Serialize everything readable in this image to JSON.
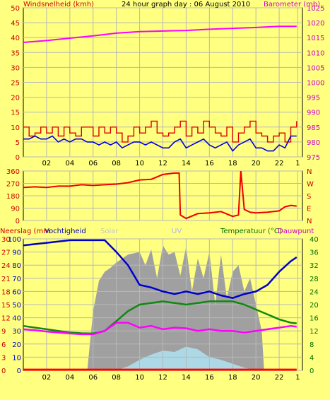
{
  "colors": {
    "background": "#ffff80",
    "plot_bg": "#ffff80",
    "grid": "#b8b8b8",
    "axis_red": "#cc0000",
    "axis_magenta": "#cc00cc",
    "axis_green": "#007000",
    "wind_gust": "#dd0000",
    "wind_avg": "#0000dd",
    "barometer": "#ff00ff",
    "wind_dir": "#ee0000",
    "rain": "#ff0000",
    "humidity": "#0000cc",
    "solar": "#a0a0a0",
    "uv": "#add8e6",
    "temperature": "#118811",
    "dewpoint": "#ff00ff",
    "solar_label": "#c8c8c8",
    "uv_label": "#b0b0ff"
  },
  "chart_data": [
    {
      "id": "wind_baro",
      "type": "line",
      "title": "24 hour graph day : 06 August 2010",
      "left_axis_label": "Windsnelheid (kmh)",
      "right_axis_label": "Barometer (mb)",
      "x_range": [
        0,
        24
      ],
      "x_tick_labels": [
        "02",
        "04",
        "06",
        "08",
        "10",
        "12",
        "14",
        "16",
        "18",
        "20",
        "22",
        "1"
      ],
      "left_ylim": [
        0,
        50
      ],
      "left_ticks": [
        "0",
        "5",
        "10",
        "15",
        "20",
        "25",
        "30",
        "35",
        "40",
        "45",
        "50"
      ],
      "right_ylim": [
        975,
        1025
      ],
      "right_ticks": [
        "975",
        "980",
        "985",
        "990",
        "995",
        "1000",
        "1005",
        "1010",
        "1015",
        "1020",
        "1025"
      ],
      "series": {
        "gust": {
          "x": [
            0,
            0.5,
            1,
            1.5,
            2,
            2.5,
            3,
            3.5,
            4,
            4.5,
            5,
            5.5,
            6,
            6.5,
            7,
            7.5,
            8,
            8.5,
            9,
            9.5,
            10,
            10.5,
            11,
            11.5,
            12,
            12.5,
            13,
            13.5,
            14,
            14.5,
            15,
            15.5,
            16,
            16.5,
            17,
            17.5,
            18,
            18.5,
            19,
            19.5,
            20,
            20.5,
            21,
            21.5,
            22,
            22.5,
            23,
            23.5
          ],
          "y": [
            10,
            7,
            8,
            10,
            8,
            10,
            7,
            10,
            8,
            7,
            10,
            10,
            7,
            10,
            8,
            10,
            8,
            5,
            7,
            10,
            8,
            10,
            12,
            8,
            7,
            8,
            10,
            12,
            7,
            10,
            8,
            12,
            10,
            8,
            7,
            10,
            5,
            8,
            10,
            12,
            8,
            7,
            5,
            7,
            8,
            5,
            10,
            12
          ]
        },
        "avg": {
          "x": [
            0,
            0.5,
            1,
            1.5,
            2,
            2.5,
            3,
            3.5,
            4,
            4.5,
            5,
            5.5,
            6,
            6.5,
            7,
            7.5,
            8,
            8.5,
            9,
            9.5,
            10,
            10.5,
            11,
            11.5,
            12,
            12.5,
            13,
            13.5,
            14,
            14.5,
            15,
            15.5,
            16,
            16.5,
            17,
            17.5,
            18,
            18.5,
            19,
            19.5,
            20,
            20.5,
            21,
            21.5,
            22,
            22.5,
            23,
            23.5
          ],
          "y": [
            6,
            6,
            7,
            6,
            6,
            7,
            5,
            6,
            5,
            6,
            6,
            5,
            5,
            4,
            5,
            4,
            5,
            3,
            4,
            5,
            5,
            4,
            5,
            4,
            3,
            3,
            5,
            6,
            3,
            4,
            5,
            6,
            4,
            3,
            4,
            5,
            2,
            4,
            5,
            6,
            3,
            3,
            2,
            2,
            4,
            3,
            7,
            7
          ]
        },
        "barometer": {
          "x": [
            0,
            2,
            4,
            6,
            8,
            10,
            12,
            14,
            16,
            18,
            20,
            22,
            23.5
          ],
          "y": [
            1013.4,
            1014,
            1014.8,
            1015.6,
            1016.5,
            1017,
            1017.2,
            1017.4,
            1017.8,
            1018.1,
            1018.4,
            1018.8,
            1018.8
          ]
        }
      }
    },
    {
      "id": "wind_dir",
      "type": "line",
      "x_range": [
        0,
        24
      ],
      "ylim": [
        0,
        360
      ],
      "left_ticks": [
        "0",
        "90",
        "180",
        "270",
        "360"
      ],
      "right_ticks": [
        "N",
        "E",
        "S",
        "W",
        "N"
      ],
      "series": {
        "direction": {
          "x": [
            0,
            1,
            2,
            3,
            4,
            5,
            6,
            7,
            8,
            9,
            10,
            11,
            12,
            12.5,
            13,
            13.4,
            13.5,
            14,
            15,
            16,
            17,
            18,
            18.5,
            18.7,
            19,
            19.5,
            20,
            21,
            22,
            22.5,
            23,
            23.5
          ],
          "y": [
            240,
            245,
            240,
            250,
            250,
            260,
            255,
            260,
            265,
            275,
            295,
            300,
            335,
            340,
            345,
            345,
            40,
            15,
            50,
            55,
            65,
            30,
            40,
            360,
            80,
            60,
            55,
            60,
            70,
            100,
            110,
            105
          ]
        }
      }
    },
    {
      "id": "rain_temp",
      "type": "line",
      "left_axis_label": "Neerslag (mm",
      "left_axis_label2": "Vochtigheid",
      "solar_label": "Solar",
      "uv_label": "UV",
      "right_axis_label": "Temperatuur (°C)",
      "right_axis_label2": "Dauwpunt",
      "x_range": [
        0,
        24
      ],
      "left_ylim": [
        0,
        100
      ],
      "left_ticks": [
        "0",
        "10",
        "20",
        "30",
        "40",
        "50",
        "60",
        "70",
        "80",
        "90",
        "100"
      ],
      "rain_ticks": [
        "0",
        "3",
        "6",
        "9",
        "12",
        "15",
        "18",
        "21",
        "24",
        "27",
        "30"
      ],
      "right_ylim": [
        0,
        40
      ],
      "right_ticks": [
        "0",
        "4",
        "8",
        "12",
        "16",
        "20",
        "24",
        "28",
        "32",
        "36",
        "40"
      ],
      "series": {
        "solar": {
          "x": [
            0,
            5.5,
            6,
            6.5,
            7,
            7.5,
            8,
            9,
            10,
            10.5,
            11,
            11.5,
            12,
            12.5,
            13,
            13.5,
            14,
            14.5,
            15,
            15.5,
            16,
            16.5,
            17,
            17.5,
            18,
            18.5,
            19,
            19.5,
            20,
            20.5,
            20.7,
            24
          ],
          "y": [
            0,
            0,
            45,
            68,
            75,
            78,
            82,
            88,
            90,
            80,
            92,
            70,
            95,
            88,
            90,
            72,
            94,
            60,
            85,
            70,
            90,
            50,
            88,
            55,
            75,
            80,
            60,
            70,
            50,
            30,
            0,
            0
          ]
        },
        "uv": {
          "x": [
            8,
            9,
            10,
            11,
            12,
            13,
            14,
            15,
            16,
            17,
            18,
            19,
            20
          ],
          "y": [
            0,
            3,
            8,
            12,
            15,
            14,
            18,
            16,
            10,
            8,
            5,
            2,
            0
          ]
        },
        "humidity": {
          "x": [
            0,
            1,
            2,
            3,
            4,
            5,
            6,
            7,
            8,
            9,
            10,
            11,
            12,
            13,
            14,
            15,
            16,
            17,
            18,
            19,
            20,
            21,
            22,
            23,
            23.5
          ],
          "y": [
            95,
            96,
            97,
            98,
            99,
            99,
            99,
            99,
            90,
            80,
            65,
            63,
            60,
            58,
            60,
            58,
            60,
            57,
            55,
            58,
            60,
            65,
            75,
            83,
            86
          ]
        },
        "temperature": {
          "x": [
            0,
            1,
            2,
            3,
            4,
            5,
            6,
            7,
            8,
            9,
            10,
            11,
            12,
            13,
            14,
            15,
            16,
            17,
            18,
            19,
            20,
            21,
            22,
            23,
            23.5
          ],
          "y": [
            13.5,
            13,
            12.5,
            12,
            11.5,
            11.3,
            11.2,
            12,
            15,
            18,
            20,
            20.5,
            21,
            20.5,
            20,
            20.5,
            21,
            21,
            21,
            20,
            18.5,
            17,
            15.5,
            14.5,
            14.3
          ]
        },
        "dewpoint": {
          "x": [
            0,
            1,
            2,
            3,
            4,
            5,
            6,
            7,
            8,
            9,
            10,
            11,
            12,
            13,
            14,
            15,
            16,
            17,
            18,
            19,
            20,
            21,
            22,
            23,
            23.5
          ],
          "y": [
            12.5,
            12.2,
            11.8,
            11.5,
            11.2,
            11,
            11,
            12,
            14.5,
            14.5,
            13,
            13.5,
            12.5,
            13,
            12.8,
            12,
            12.5,
            12,
            12,
            11.5,
            12,
            12.5,
            13,
            13.5,
            13.3
          ]
        },
        "rain": {
          "x": [
            0,
            23.5
          ],
          "y": [
            0.5,
            0.5
          ]
        }
      }
    }
  ]
}
